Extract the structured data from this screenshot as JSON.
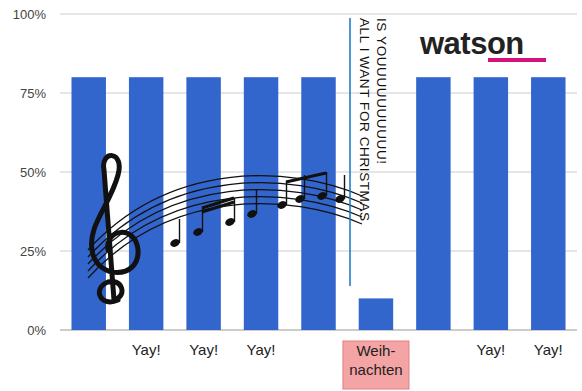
{
  "chart_data": {
    "type": "bar",
    "categories": [
      null,
      "Yay!",
      "Yay!",
      "Yay!",
      null,
      "Weih-nachten",
      null,
      "Yay!",
      "Yay!"
    ],
    "values": [
      80,
      80,
      80,
      80,
      80,
      10,
      80,
      80,
      80
    ],
    "color": "#3366cc",
    "ylim": [
      0,
      100
    ],
    "yticks": [
      {
        "value": 0,
        "label": "0%"
      },
      {
        "value": 25,
        "label": "25%"
      },
      {
        "value": 50,
        "label": "50%"
      },
      {
        "value": 75,
        "label": "75%"
      },
      {
        "value": 100,
        "label": "100%"
      }
    ],
    "grid": true,
    "annotation": [
      "ALL I WANT FOR CHRISTMAS",
      "IS YOUUUUUUUUUU!"
    ],
    "watermark": "watson"
  }
}
